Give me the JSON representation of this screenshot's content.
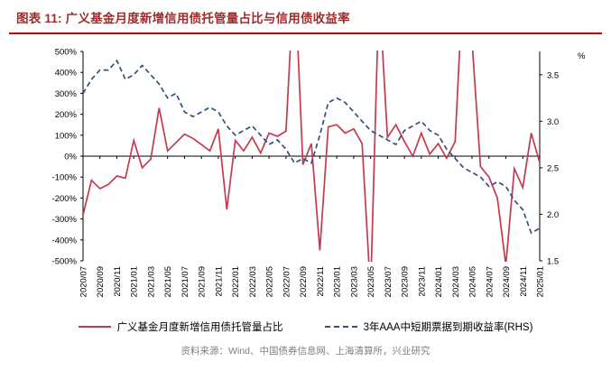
{
  "page": {
    "title": "图表 11: 广义基金月度新增信用债托管量占比与信用债收益率",
    "footer_source": "资料来源：Wind、中国债券信息网、上海清算所，兴业研究"
  },
  "colors": {
    "title_red": "#9e2c2c",
    "divider_red": "#c00000",
    "series_red": "#c53a4e",
    "series_navy": "#34507c",
    "footer_gray": "#7f7f7f"
  },
  "chart_data": {
    "type": "line",
    "title": "图表 11: 广义基金月度新增信用债托管量占比与信用债收益率",
    "legend_position": "bottom",
    "grid": false,
    "x": [
      "2020/07",
      "2020/08",
      "2020/09",
      "2020/10",
      "2020/11",
      "2020/12",
      "2021/01",
      "2021/02",
      "2021/03",
      "2021/04",
      "2021/05",
      "2021/06",
      "2021/07",
      "2021/08",
      "2021/09",
      "2021/10",
      "2021/11",
      "2021/12",
      "2022/01",
      "2022/02",
      "2022/03",
      "2022/04",
      "2022/05",
      "2022/06",
      "2022/07",
      "2022/08",
      "2022/09",
      "2022/10",
      "2022/11",
      "2022/12",
      "2023/01",
      "2023/02",
      "2023/03",
      "2023/04",
      "2023/05",
      "2023/06",
      "2023/07",
      "2023/08",
      "2023/09",
      "2023/10",
      "2023/11",
      "2023/12",
      "2024/01",
      "2024/02",
      "2024/03",
      "2024/04",
      "2024/05",
      "2024/06",
      "2024/07",
      "2024/08",
      "2024/09",
      "2024/10",
      "2024/11",
      "2024/12",
      "2025/01"
    ],
    "x_tick_labels": [
      "2020/07",
      "2020/09",
      "2020/11",
      "2021/01",
      "2021/03",
      "2021/05",
      "2021/07",
      "2021/09",
      "2021/11",
      "2022/01",
      "2022/03",
      "2022/05",
      "2022/07",
      "2022/09",
      "2022/11",
      "2023/01",
      "2023/03",
      "2023/05",
      "2023/07",
      "2023/09",
      "2023/11",
      "2024/01",
      "2024/03",
      "2024/05",
      "2024/07",
      "2024/09",
      "2024/11",
      "2025/01"
    ],
    "left_axis": {
      "min": -500,
      "max": 500,
      "unit": "%",
      "tick_values": [
        500,
        400,
        300,
        200,
        100,
        0,
        -100,
        -200,
        -300,
        -400,
        -500
      ]
    },
    "right_axis": {
      "min": 1.5,
      "max": 3.75,
      "unit": "%",
      "tick_values": [
        3.5,
        3.0,
        2.5,
        2.0,
        1.5
      ]
    },
    "series": [
      {
        "name": "广义基金月度新增信用债托管量占比",
        "axis": "left",
        "style": "solid",
        "color": "#c53a4e",
        "values": [
          -280,
          -115,
          -155,
          -135,
          -95,
          -105,
          75,
          -55,
          -15,
          230,
          25,
          65,
          105,
          85,
          55,
          25,
          130,
          -255,
          75,
          25,
          90,
          15,
          110,
          95,
          120,
          900,
          -40,
          60,
          -450,
          140,
          150,
          110,
          130,
          60,
          -650,
          800,
          90,
          150,
          70,
          0,
          110,
          10,
          60,
          -10,
          70,
          900,
          550,
          -50,
          -100,
          -200,
          -520,
          -60,
          -150,
          110,
          -30
        ]
      },
      {
        "name": "3年AAA中短期票据到期收益率(RHS)",
        "axis": "right",
        "style": "dashed",
        "color": "#34507c",
        "values": [
          3.3,
          3.45,
          3.55,
          3.55,
          3.65,
          3.45,
          3.5,
          3.6,
          3.5,
          3.4,
          3.25,
          3.3,
          3.1,
          3.05,
          3.1,
          3.15,
          3.1,
          2.95,
          2.85,
          2.9,
          2.95,
          2.85,
          2.75,
          2.8,
          2.7,
          2.55,
          2.6,
          2.55,
          2.85,
          3.2,
          3.25,
          3.2,
          3.1,
          3.0,
          2.9,
          2.85,
          2.8,
          2.75,
          2.9,
          2.95,
          3.0,
          2.9,
          2.85,
          2.7,
          2.6,
          2.5,
          2.45,
          2.4,
          2.3,
          2.35,
          2.3,
          2.15,
          2.05,
          1.8,
          1.85
        ]
      }
    ]
  }
}
